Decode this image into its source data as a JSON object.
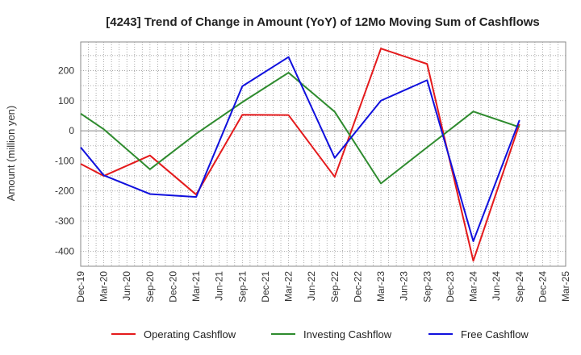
{
  "chart_data": {
    "type": "line",
    "title": "[4243]  Trend of Change in Amount (YoY) of 12Mo Moving Sum of Cashflows",
    "xlabel": "",
    "ylabel": "Amount (million yen)",
    "ylim": [
      -450,
      295
    ],
    "yticks": [
      -400,
      -300,
      -200,
      -100,
      0,
      100,
      200
    ],
    "grid": true,
    "legend_position": "bottom",
    "categories": [
      "Dec-19",
      "Mar-20",
      "Jun-20",
      "Sep-20",
      "Dec-20",
      "Mar-21",
      "Jun-21",
      "Sep-21",
      "Dec-21",
      "Mar-22",
      "Jun-22",
      "Sep-22",
      "Dec-22",
      "Mar-23",
      "Jun-23",
      "Sep-23",
      "Dec-23",
      "Mar-24",
      "Jun-24",
      "Sep-24",
      "Dec-24",
      "Mar-25"
    ],
    "series": [
      {
        "name": "Operating Cashflow",
        "color": "#e41a1c",
        "values": [
          -110,
          -150,
          null,
          -82,
          null,
          -212,
          null,
          53,
          null,
          52,
          null,
          -153,
          null,
          273,
          null,
          222,
          null,
          -432,
          null,
          22,
          null,
          null
        ]
      },
      {
        "name": "Investing Cashflow",
        "color": "#2e8b2e",
        "values": [
          57,
          5,
          null,
          -128,
          null,
          -10,
          null,
          95,
          null,
          193,
          null,
          63,
          null,
          -175,
          null,
          -55,
          null,
          64,
          null,
          12,
          null,
          null
        ]
      },
      {
        "name": "Free Cashflow",
        "color": "#1010dd",
        "values": [
          -55,
          -148,
          null,
          -210,
          null,
          -220,
          null,
          148,
          null,
          245,
          null,
          -90,
          null,
          100,
          null,
          168,
          null,
          -367,
          null,
          35,
          null,
          null
        ]
      }
    ]
  }
}
